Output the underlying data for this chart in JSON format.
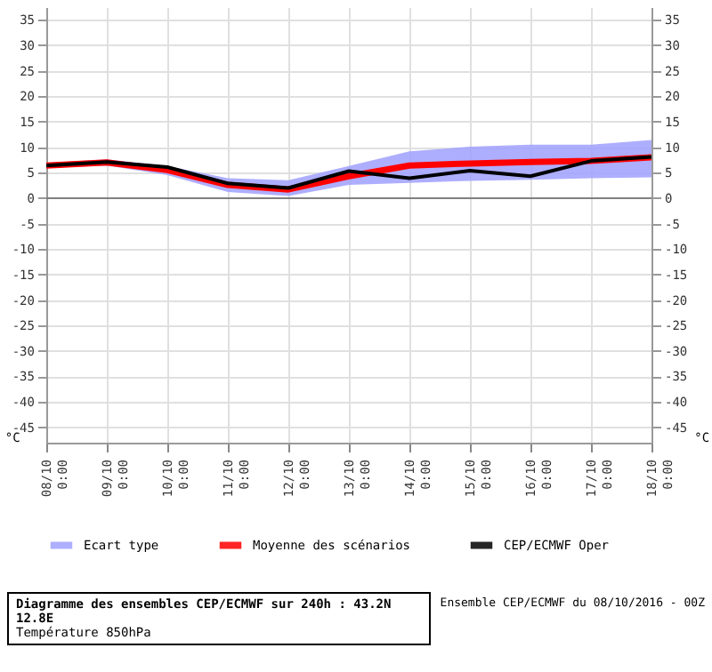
{
  "chart_data": {
    "type": "line",
    "title": "Diagramme des ensembles CEP/ECMWF sur 240h : 43.2N 12.8E",
    "subtitle": "Température 850hPa",
    "ylabel": "°C",
    "y2label": "°C",
    "annotations": [
      "Ensemble CEP/ECMWF du 08/10/2016 - 00Z"
    ],
    "categories": [
      "08/10 0:00",
      "09/10 0:00",
      "10/10 0:00",
      "11/10 0:00",
      "12/10 0:00",
      "13/10 0:00",
      "14/10 0:00",
      "15/10 0:00",
      "16/10 0:00",
      "17/10 0:00",
      "18/10 0:00"
    ],
    "series": [
      {
        "name": "Ecart type",
        "type": "area",
        "color": "#a0a0ff",
        "values": [
          null,
          null,
          null,
          null,
          null,
          null,
          null,
          null,
          null,
          null,
          null
        ],
        "lower": [
          5.9,
          6.4,
          4.5,
          1.2,
          0.4,
          2.6,
          3.0,
          3.4,
          3.6,
          3.9,
          4.1
        ],
        "upper": [
          6.9,
          7.6,
          6.3,
          3.9,
          3.5,
          6.3,
          9.2,
          10.1,
          10.5,
          10.5,
          11.4
        ]
      },
      {
        "name": "Moyenne des scénarios",
        "type": "line",
        "color": "#ff0000",
        "values": [
          6.4,
          7.0,
          5.5,
          2.6,
          1.7,
          4.3,
          6.4,
          6.8,
          7.1,
          7.3,
          8.0
        ]
      },
      {
        "name": "CEP/ECMWF Oper",
        "type": "line",
        "color": "#000000",
        "values": [
          6.4,
          7.1,
          6.1,
          2.9,
          2.0,
          5.3,
          3.9,
          5.4,
          4.3,
          7.3,
          8.1
        ]
      }
    ],
    "ylim": [
      -48,
      37.5
    ],
    "yticks": [
      -45,
      -40,
      -35,
      -30,
      -25,
      -20,
      -15,
      -10,
      -5,
      0,
      5,
      10,
      15,
      20,
      25,
      30,
      35
    ],
    "y2lim": [
      -48,
      37.5
    ],
    "y2ticks": [
      -45,
      -40,
      -35,
      -30,
      -25,
      -20,
      -15,
      -10,
      -5,
      0,
      5,
      10,
      15,
      20,
      25,
      30,
      35
    ],
    "ref_lines": [
      {
        "axis": "y",
        "value": 0,
        "color": "#808080"
      }
    ],
    "grid": true,
    "legend": "bottom",
    "marker": "none",
    "line_style": "solid"
  }
}
